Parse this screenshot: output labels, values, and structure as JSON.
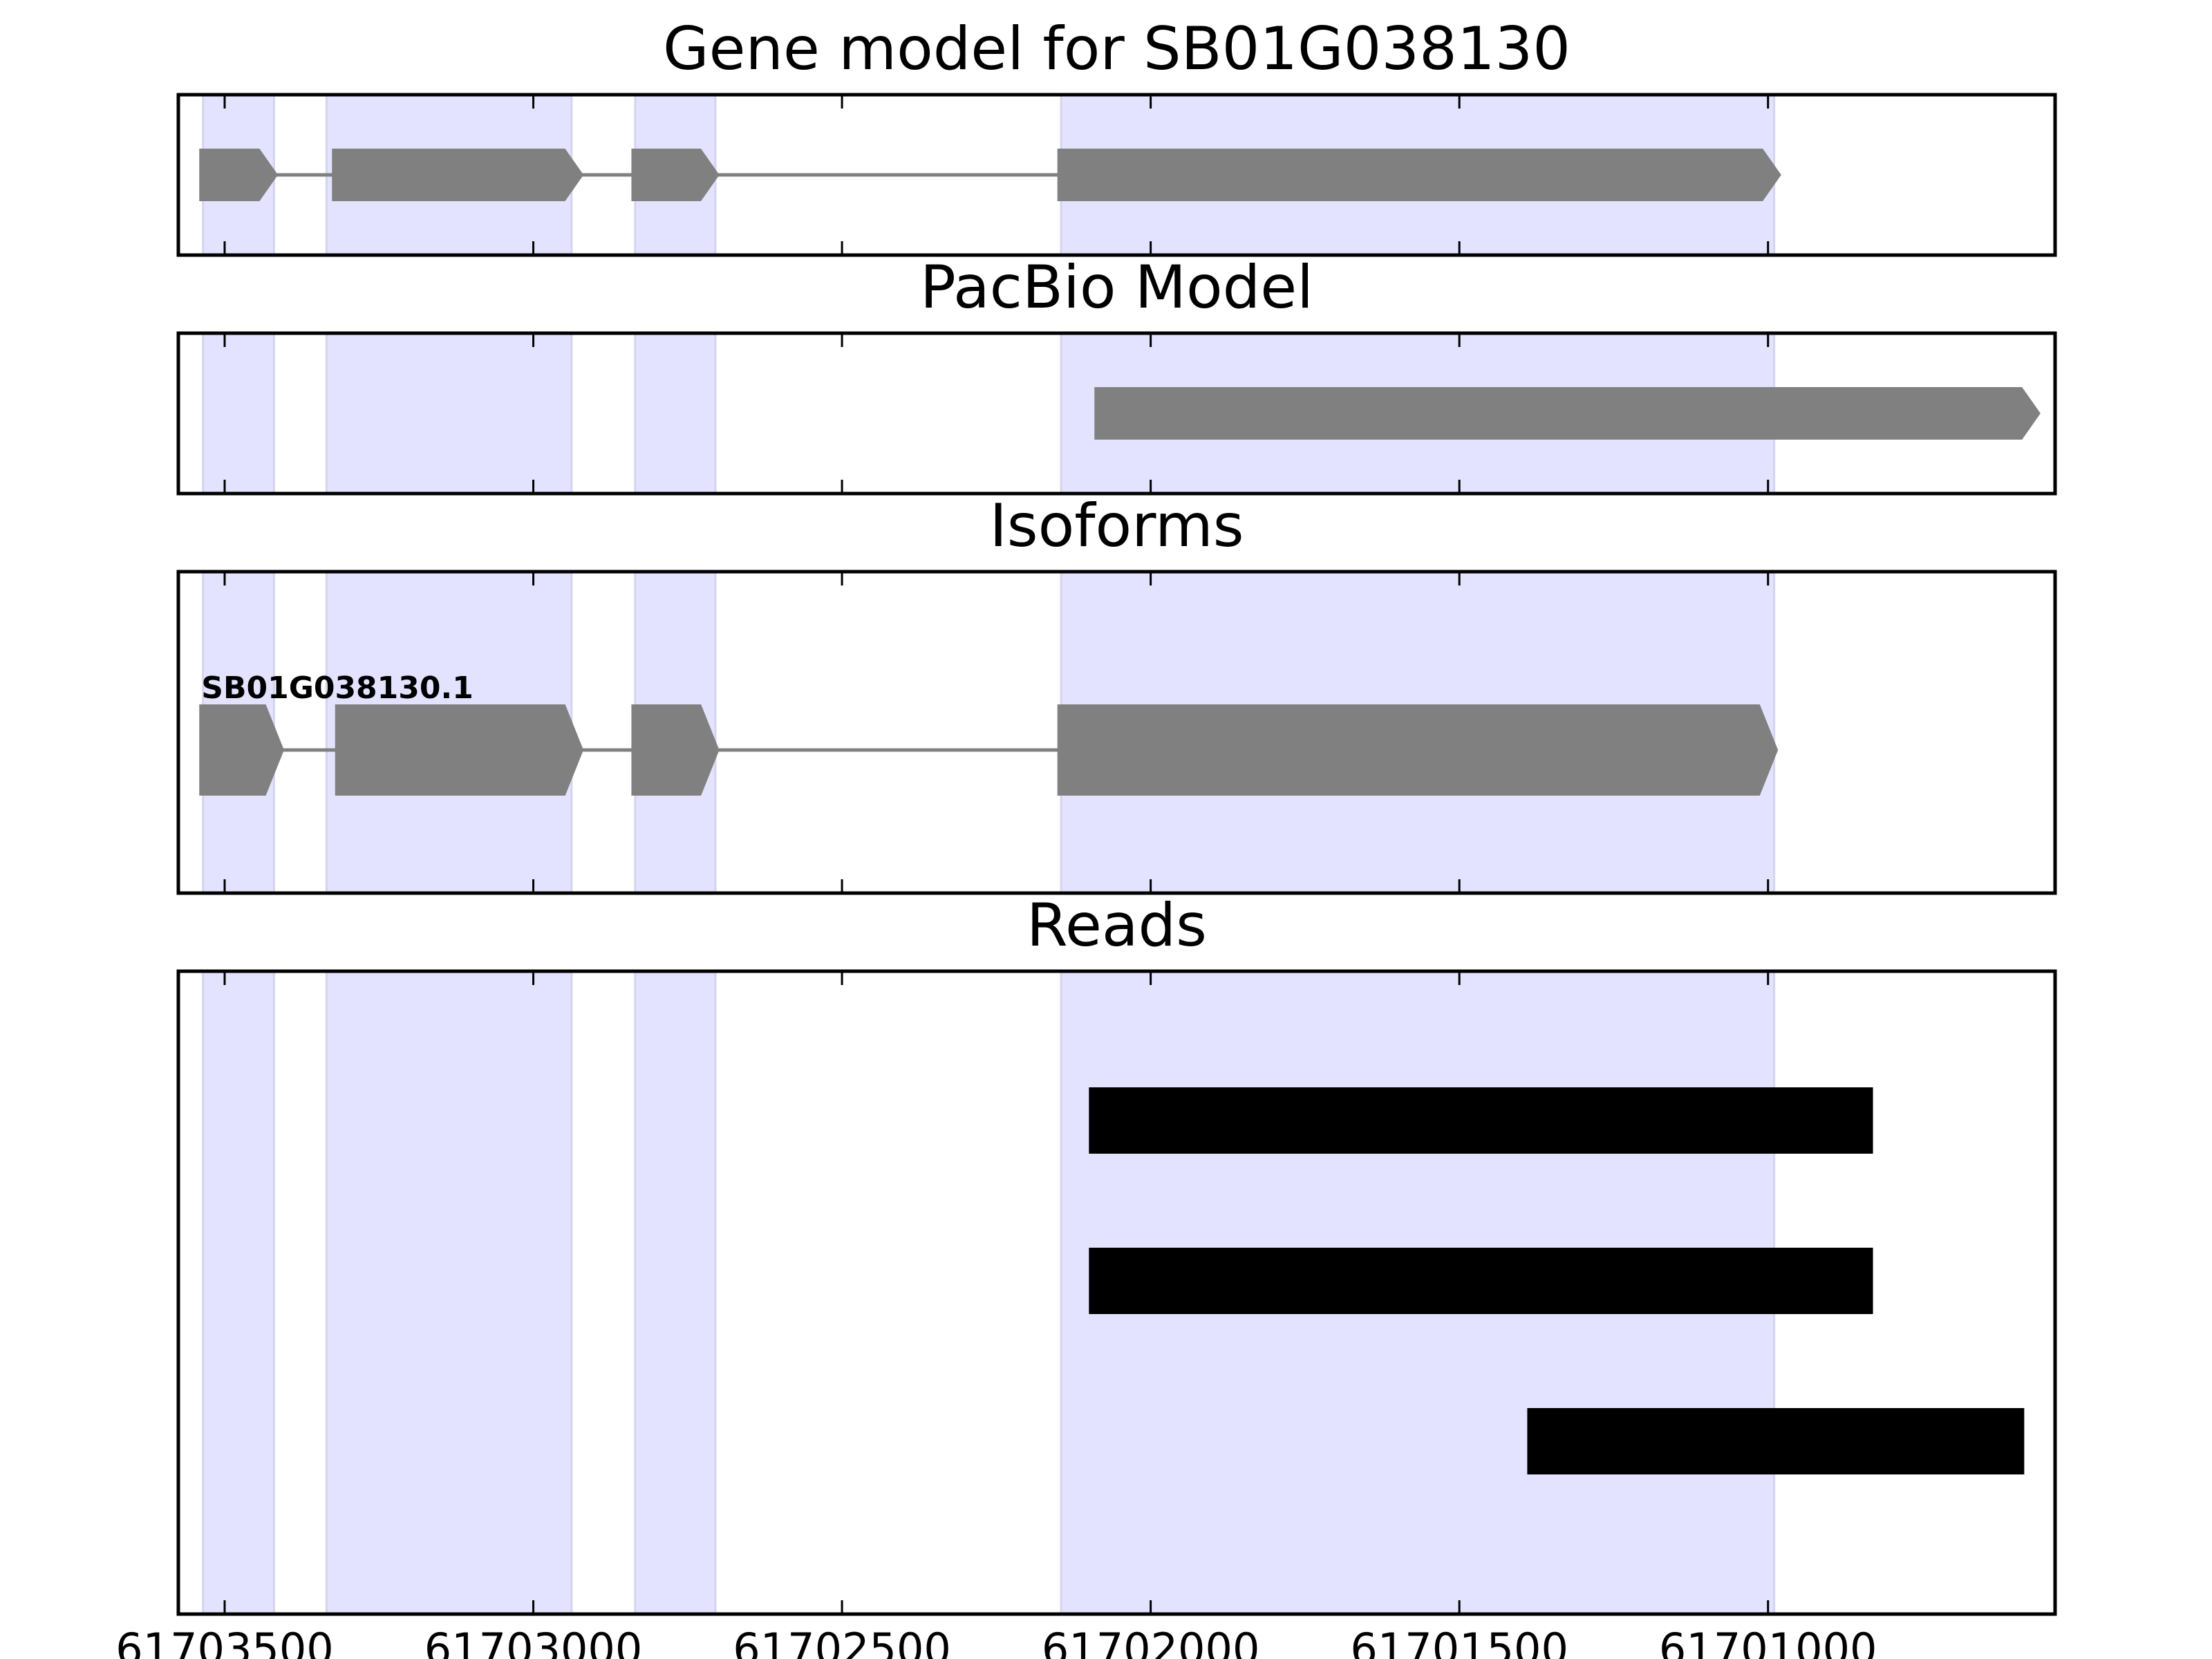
{
  "chart_data": {
    "type": "gene-track",
    "x_axis": {
      "xlim": [
        61703575,
        61700535
      ],
      "ticks": [
        61703500,
        61703000,
        61702500,
        61702000,
        61701500,
        61701000
      ],
      "tick_labels": [
        "61703500",
        "61703000",
        "61702500",
        "61702000",
        "61701500",
        "61701000"
      ],
      "direction": "descending"
    },
    "highlight_color": "#e3e3ff",
    "exon_color": "#808080",
    "read_color": "#000000",
    "shaded_regions": [
      [
        61703535,
        61703420
      ],
      [
        61703335,
        61702938
      ],
      [
        61702835,
        61702705
      ],
      [
        61702145,
        61700990
      ]
    ],
    "panels": [
      {
        "id": "gene-model",
        "title": "Gene model for SB01G038130",
        "track_type": "exons",
        "strand": "-",
        "exons": [
          [
            61703540,
            61703415
          ],
          [
            61703325,
            61702920
          ],
          [
            61702840,
            61702700
          ],
          [
            61702150,
            61700980
          ]
        ]
      },
      {
        "id": "pacbio-model",
        "title": "PacBio Model",
        "track_type": "exons",
        "strand": "-",
        "exons": [
          [
            61702090,
            61700560
          ]
        ]
      },
      {
        "id": "isoforms",
        "title": "Isoforms",
        "track_type": "exons",
        "strand": "-",
        "isoform_label": "SB01G038130.1",
        "exons": [
          [
            61703540,
            61703405
          ],
          [
            61703320,
            61702920
          ],
          [
            61702840,
            61702700
          ],
          [
            61702150,
            61700985
          ]
        ]
      },
      {
        "id": "reads",
        "title": "Reads",
        "track_type": "reads",
        "reads": [
          [
            61702100,
            61700830
          ],
          [
            61702100,
            61700830
          ],
          [
            61701390,
            61700585
          ]
        ]
      }
    ]
  }
}
